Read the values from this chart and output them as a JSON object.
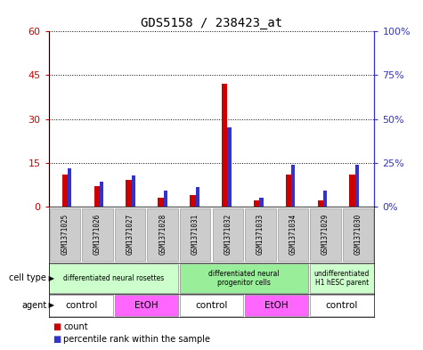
{
  "title": "GDS5158 / 238423_at",
  "samples": [
    "GSM1371025",
    "GSM1371026",
    "GSM1371027",
    "GSM1371028",
    "GSM1371031",
    "GSM1371032",
    "GSM1371033",
    "GSM1371034",
    "GSM1371029",
    "GSM1371030"
  ],
  "counts": [
    11,
    7,
    9,
    3,
    4,
    42,
    2,
    11,
    2,
    11
  ],
  "percentile_ranks": [
    22,
    14,
    18,
    9,
    11,
    45,
    5,
    24,
    9,
    24
  ],
  "ylim_left": [
    0,
    60
  ],
  "ylim_right": [
    0,
    100
  ],
  "yticks_left": [
    0,
    15,
    30,
    45,
    60
  ],
  "ytick_labels_left": [
    "0",
    "15",
    "30",
    "45",
    "60"
  ],
  "yticks_right": [
    0,
    25,
    50,
    75,
    100
  ],
  "ytick_labels_right": [
    "0%",
    "25%",
    "50%",
    "75%",
    "100%"
  ],
  "bar_color_count": "#cc0000",
  "bar_color_pct": "#3333cc",
  "plot_bg": "#ffffff",
  "cell_type_groups": [
    {
      "label": "differentiated neural rosettes",
      "start": 0,
      "end": 4,
      "color": "#ccffcc"
    },
    {
      "label": "differentiated neural\nprogenitor cells",
      "start": 4,
      "end": 8,
      "color": "#99ee99"
    },
    {
      "label": "undifferentiated\nH1 hESC parent",
      "start": 8,
      "end": 10,
      "color": "#ccffcc"
    }
  ],
  "agent_groups": [
    {
      "label": "control",
      "start": 0,
      "end": 2,
      "color": "#ffffff"
    },
    {
      "label": "EtOH",
      "start": 2,
      "end": 4,
      "color": "#ff66ff"
    },
    {
      "label": "control",
      "start": 4,
      "end": 6,
      "color": "#ffffff"
    },
    {
      "label": "EtOH",
      "start": 6,
      "end": 8,
      "color": "#ff66ff"
    },
    {
      "label": "control",
      "start": 8,
      "end": 10,
      "color": "#ffffff"
    }
  ],
  "row_label_cell_type": "cell type",
  "row_label_agent": "agent",
  "legend_count_label": "count",
  "legend_pct_label": "percentile rank within the sample",
  "sample_bg_color": "#cccccc",
  "sample_border_color": "#999999",
  "count_bar_width": 0.18,
  "pct_bar_width": 0.12
}
